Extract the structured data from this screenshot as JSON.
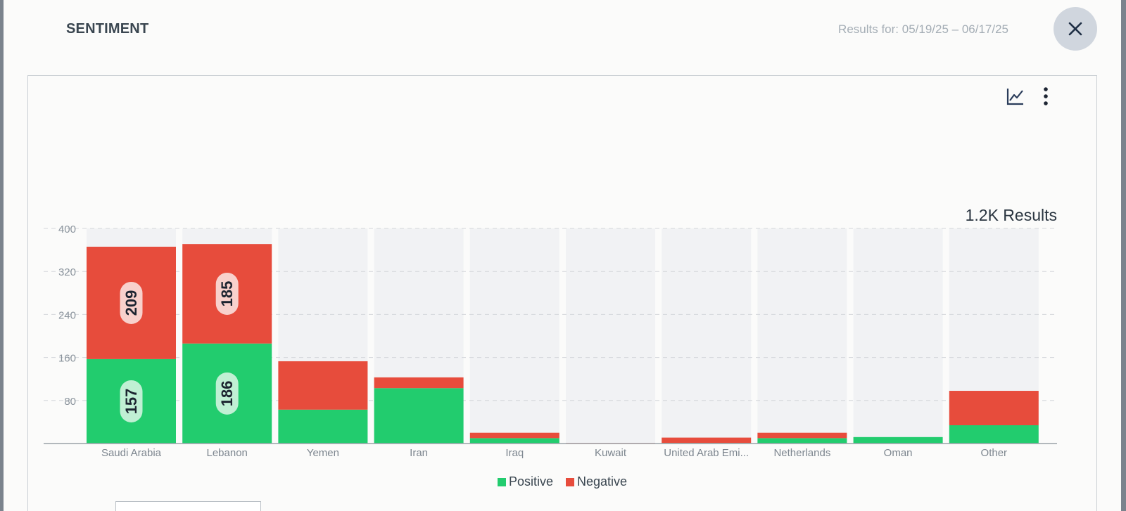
{
  "header": {
    "title": "SENTIMENT",
    "date_range": "Results for: 05/19/25 – 06/17/25"
  },
  "toolbar": {
    "chart_icon": "line-chart-icon",
    "menu_icon": "vertical-dots-icon",
    "close_icon": "close-icon"
  },
  "results_total": "1.2K Results",
  "colors": {
    "positive": "#22cc6e",
    "negative": "#e74c3c",
    "track": "#f1f2f4",
    "grid": "#d3d6da"
  },
  "chart_data": {
    "type": "bar",
    "stacked": true,
    "categories": [
      "Saudi Arabia",
      "Lebanon",
      "Yemen",
      "Iran",
      "Iraq",
      "Kuwait",
      "United Arab Emi...",
      "Netherlands",
      "Oman",
      "Other"
    ],
    "series": [
      {
        "name": "Positive",
        "values": [
          157,
          186,
          63,
          103,
          10,
          0,
          1,
          10,
          12,
          34
        ]
      },
      {
        "name": "Negative",
        "values": [
          209,
          185,
          90,
          20,
          10,
          1,
          10,
          10,
          0,
          64
        ]
      }
    ],
    "data_labels": {
      "Positive": [
        "157",
        "186",
        "",
        "",
        "",
        "",
        "",
        "",
        "",
        ""
      ],
      "Negative": [
        "209",
        "185",
        "",
        "",
        "",
        "",
        "",
        "",
        "",
        ""
      ]
    },
    "y_ticks": [
      80,
      160,
      240,
      320,
      400
    ],
    "ylim": [
      0,
      400
    ],
    "grid": true,
    "legend_position": "bottom-center"
  }
}
